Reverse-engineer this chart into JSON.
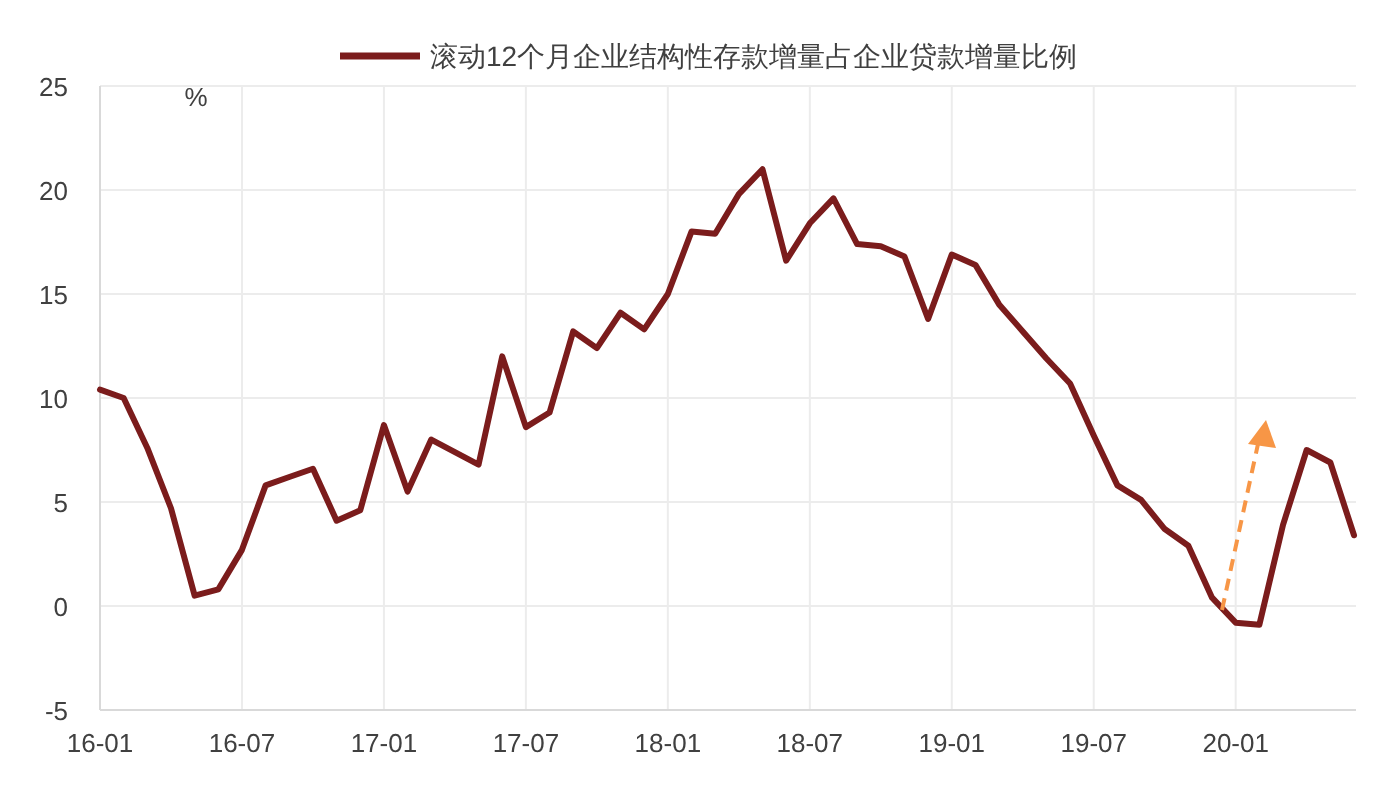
{
  "chart_data": {
    "type": "line",
    "ylabel": "%",
    "categories": [
      "16-01",
      null,
      null,
      null,
      null,
      null,
      "16-07",
      null,
      null,
      null,
      null,
      null,
      "17-01",
      null,
      null,
      null,
      null,
      null,
      "17-07",
      null,
      null,
      null,
      null,
      null,
      "18-01",
      null,
      null,
      null,
      null,
      null,
      "18-07",
      null,
      null,
      null,
      null,
      null,
      "19-01",
      null,
      null,
      null,
      null,
      null,
      "19-07",
      null,
      null,
      null,
      null,
      null,
      "20-01",
      null,
      null,
      null,
      null,
      null
    ],
    "series": [
      {
        "name": "滚动12个月企业结构性存款增量占企业贷款增量比例",
        "color": "#7b1c1c",
        "values": [
          10.4,
          10.0,
          7.6,
          4.7,
          0.5,
          0.8,
          2.7,
          5.8,
          6.2,
          6.6,
          4.1,
          4.6,
          8.7,
          5.5,
          8.0,
          7.4,
          6.8,
          12.0,
          8.6,
          9.3,
          13.2,
          12.4,
          14.1,
          13.3,
          15.0,
          18.0,
          17.9,
          19.8,
          21.0,
          16.6,
          18.4,
          19.6,
          17.4,
          17.3,
          16.8,
          13.8,
          16.9,
          16.4,
          14.5,
          13.2,
          11.9,
          10.7,
          8.2,
          5.8,
          5.1,
          3.7,
          2.9,
          0.4,
          -0.8,
          -0.9,
          3.9,
          7.5,
          6.9,
          3.4
        ]
      }
    ],
    "ylim": [
      -5,
      25
    ],
    "yticks": [
      -5,
      0,
      5,
      10,
      15,
      20,
      25
    ],
    "grid": true,
    "legend": "top",
    "marker": "none",
    "line_style": "solid"
  }
}
